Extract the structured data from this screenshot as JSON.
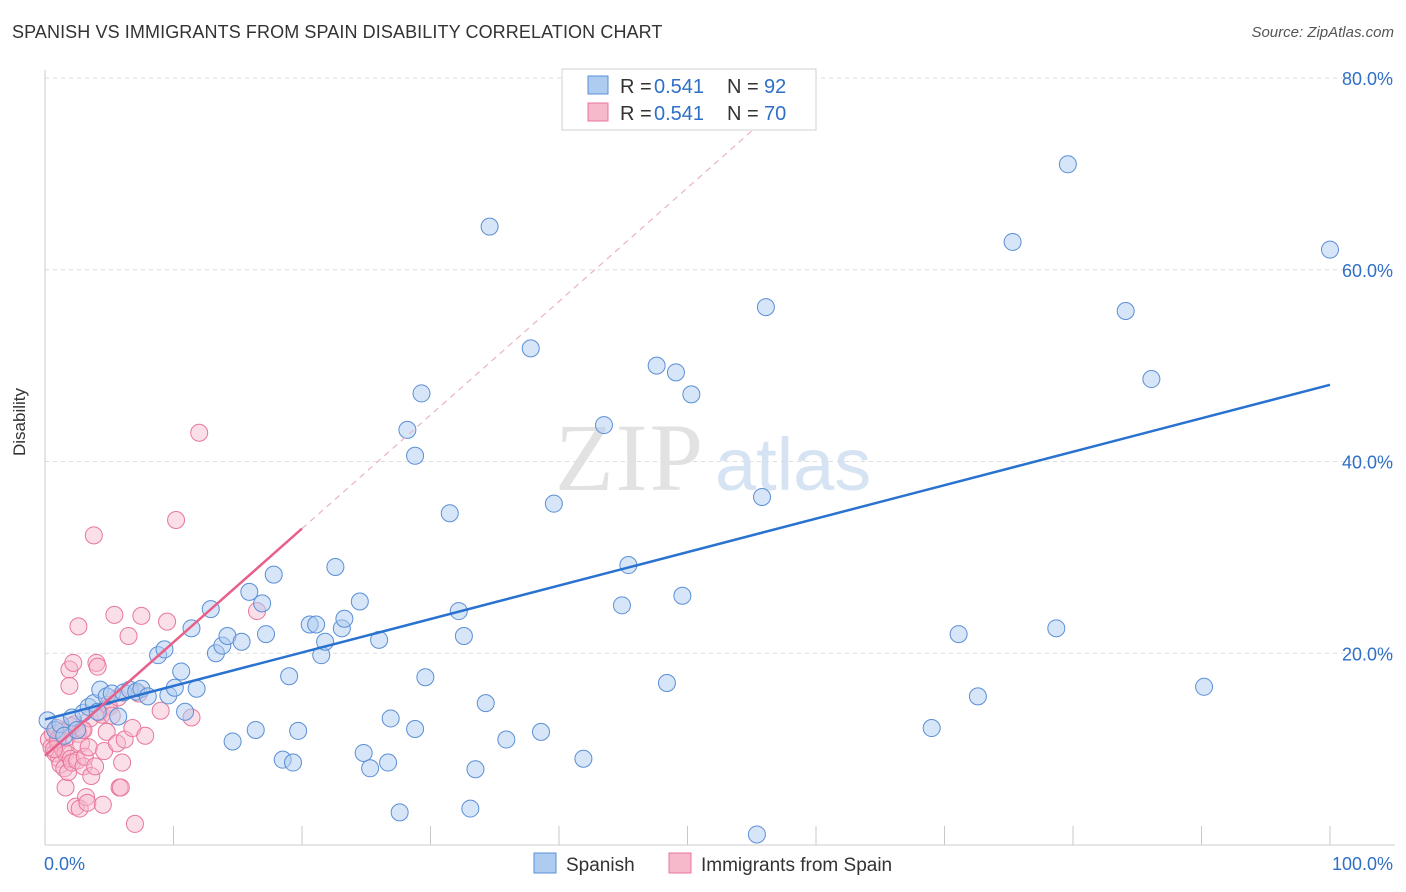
{
  "title": "SPANISH VS IMMIGRANTS FROM SPAIN DISABILITY CORRELATION CHART",
  "source": "Source: ZipAtlas.com",
  "watermark": {
    "zip": "ZIP",
    "atlas": "atlas"
  },
  "legend_top": [
    {
      "r_label": "R = ",
      "r_value": "0.541",
      "n_label": "N = ",
      "n_value": "92"
    },
    {
      "r_label": "R = ",
      "r_value": "0.541",
      "n_label": "N = ",
      "n_value": "70"
    }
  ],
  "colors": {
    "blue_fill": "#aecbf0",
    "blue_stroke": "#5b8fd6",
    "blue_line": "#2a72d0",
    "pink_fill": "#f6b8cb",
    "pink_stroke": "#e8779b",
    "pink_line": "#e8608a",
    "value_text": "#2f6fc6",
    "grid": "#dddddd"
  },
  "chart_data": {
    "type": "scatter",
    "title": "SPANISH VS IMMIGRANTS FROM SPAIN DISABILITY CORRELATION CHART",
    "xlabel": "",
    "ylabel": "Disability",
    "xlim": [
      0,
      100
    ],
    "ylim": [
      0,
      83
    ],
    "x_tick_labels": [
      "0.0%",
      "100.0%"
    ],
    "y_ticks": [
      20,
      40,
      60,
      80
    ],
    "y_tick_labels": [
      "20.0%",
      "40.0%",
      "60.0%",
      "80.0%"
    ],
    "grid": true,
    "legend_position": "bottom",
    "series": [
      {
        "name": "Spanish",
        "R": 0.541,
        "N": 92,
        "trend": {
          "x": [
            0,
            100
          ],
          "y": [
            13.1,
            48.0
          ]
        },
        "points": [
          [
            0.2,
            13.0
          ],
          [
            0.8,
            12.0
          ],
          [
            1.2,
            12.6
          ],
          [
            1.5,
            11.4
          ],
          [
            2.1,
            13.3
          ],
          [
            2.5,
            12.0
          ],
          [
            3.0,
            13.8
          ],
          [
            3.4,
            14.4
          ],
          [
            3.8,
            14.8
          ],
          [
            4.1,
            13.9
          ],
          [
            4.3,
            16.2
          ],
          [
            4.8,
            15.5
          ],
          [
            5.2,
            15.8
          ],
          [
            5.7,
            13.4
          ],
          [
            6.1,
            15.9
          ],
          [
            6.6,
            16.2
          ],
          [
            7.1,
            16.0
          ],
          [
            7.5,
            16.3
          ],
          [
            8.0,
            15.5
          ],
          [
            8.8,
            19.8
          ],
          [
            9.3,
            20.4
          ],
          [
            9.6,
            15.6
          ],
          [
            10.1,
            16.4
          ],
          [
            10.6,
            18.1
          ],
          [
            10.9,
            13.9
          ],
          [
            11.4,
            22.6
          ],
          [
            11.8,
            16.3
          ],
          [
            12.9,
            24.6
          ],
          [
            13.3,
            20.0
          ],
          [
            13.8,
            20.8
          ],
          [
            14.2,
            21.8
          ],
          [
            14.6,
            10.8
          ],
          [
            15.3,
            21.2
          ],
          [
            15.9,
            26.4
          ],
          [
            16.4,
            12.0
          ],
          [
            16.9,
            25.2
          ],
          [
            17.2,
            22.0
          ],
          [
            17.8,
            28.2
          ],
          [
            18.5,
            8.9
          ],
          [
            19.0,
            17.6
          ],
          [
            19.3,
            8.6
          ],
          [
            19.7,
            11.9
          ],
          [
            20.6,
            23.0
          ],
          [
            21.1,
            23.0
          ],
          [
            21.5,
            19.8
          ],
          [
            21.8,
            21.2
          ],
          [
            22.6,
            29.0
          ],
          [
            23.1,
            22.6
          ],
          [
            23.3,
            23.6
          ],
          [
            24.5,
            25.4
          ],
          [
            24.8,
            9.6
          ],
          [
            25.3,
            8.0
          ],
          [
            26.0,
            21.4
          ],
          [
            26.7,
            8.6
          ],
          [
            26.9,
            13.2
          ],
          [
            27.6,
            3.4
          ],
          [
            28.2,
            43.3
          ],
          [
            28.8,
            12.1
          ],
          [
            29.3,
            47.1
          ],
          [
            29.6,
            17.5
          ],
          [
            28.8,
            40.6
          ],
          [
            31.5,
            34.6
          ],
          [
            32.2,
            24.4
          ],
          [
            32.6,
            21.8
          ],
          [
            33.1,
            3.8
          ],
          [
            33.5,
            7.9
          ],
          [
            34.3,
            14.8
          ],
          [
            34.6,
            64.5
          ],
          [
            35.9,
            11.0
          ],
          [
            37.8,
            51.8
          ],
          [
            38.6,
            11.8
          ],
          [
            39.6,
            35.6
          ],
          [
            41.9,
            9.0
          ],
          [
            43.5,
            43.8
          ],
          [
            44.9,
            25.0
          ],
          [
            45.4,
            29.2
          ],
          [
            47.6,
            50.0
          ],
          [
            48.4,
            16.9
          ],
          [
            49.1,
            49.3
          ],
          [
            49.6,
            26.0
          ],
          [
            50.3,
            47.0
          ],
          [
            55.4,
            1.1
          ],
          [
            55.8,
            36.3
          ],
          [
            56.1,
            56.1
          ],
          [
            69.0,
            12.2
          ],
          [
            71.1,
            22.0
          ],
          [
            72.6,
            15.5
          ],
          [
            75.3,
            62.9
          ],
          [
            78.7,
            22.6
          ],
          [
            79.6,
            71.0
          ],
          [
            84.1,
            55.7
          ],
          [
            86.1,
            48.6
          ],
          [
            90.2,
            16.5
          ],
          [
            100.0,
            62.1
          ]
        ]
      },
      {
        "name": "Immigrants from Spain",
        "R": 0.541,
        "N": 70,
        "trend": {
          "x": [
            0,
            20
          ],
          "y": [
            9.3,
            33.0
          ]
        },
        "points": [
          [
            0.3,
            11.0
          ],
          [
            0.5,
            10.2
          ],
          [
            0.6,
            11.6
          ],
          [
            0.8,
            9.6
          ],
          [
            0.9,
            12.2
          ],
          [
            1.0,
            10.6
          ],
          [
            1.1,
            9.0
          ],
          [
            1.2,
            8.4
          ],
          [
            1.3,
            11.8
          ],
          [
            1.4,
            10.0
          ],
          [
            1.5,
            8.0
          ],
          [
            1.6,
            9.6
          ],
          [
            1.6,
            6.0
          ],
          [
            1.7,
            11.2
          ],
          [
            1.8,
            7.6
          ],
          [
            1.9,
            18.3
          ],
          [
            1.9,
            16.6
          ],
          [
            2.0,
            9.0
          ],
          [
            2.1,
            8.6
          ],
          [
            2.2,
            19.0
          ],
          [
            2.3,
            12.6
          ],
          [
            2.4,
            4.0
          ],
          [
            2.5,
            8.8
          ],
          [
            2.6,
            11.6
          ],
          [
            2.6,
            22.8
          ],
          [
            2.7,
            3.8
          ],
          [
            2.8,
            10.6
          ],
          [
            2.9,
            12.0
          ],
          [
            3.0,
            8.2
          ],
          [
            3.1,
            9.2
          ],
          [
            3.2,
            5.0
          ],
          [
            3.3,
            4.4
          ],
          [
            3.4,
            10.2
          ],
          [
            3.5,
            13.2
          ],
          [
            3.6,
            7.2
          ],
          [
            3.8,
            32.3
          ],
          [
            3.9,
            8.2
          ],
          [
            4.0,
            19.0
          ],
          [
            4.1,
            18.6
          ],
          [
            4.2,
            13.8
          ],
          [
            4.4,
            13.6
          ],
          [
            4.5,
            4.2
          ],
          [
            4.6,
            9.8
          ],
          [
            4.8,
            11.8
          ],
          [
            4.9,
            14.6
          ],
          [
            5.0,
            14.4
          ],
          [
            5.2,
            13.5
          ],
          [
            5.4,
            24.0
          ],
          [
            5.6,
            10.6
          ],
          [
            5.7,
            15.4
          ],
          [
            5.8,
            6.0
          ],
          [
            5.9,
            6.0
          ],
          [
            6.0,
            8.6
          ],
          [
            6.2,
            11.0
          ],
          [
            6.5,
            21.8
          ],
          [
            6.8,
            12.2
          ],
          [
            7.0,
            2.2
          ],
          [
            7.3,
            15.8
          ],
          [
            7.5,
            23.9
          ],
          [
            7.8,
            11.4
          ],
          [
            9.0,
            14.0
          ],
          [
            9.5,
            23.3
          ],
          [
            10.2,
            33.9
          ],
          [
            11.4,
            13.3
          ],
          [
            12.0,
            43.0
          ],
          [
            16.5,
            24.4
          ],
          [
            2.0,
            12.4
          ],
          [
            1.0,
            11.0
          ],
          [
            3.0,
            12.0
          ],
          [
            0.7,
            10.0
          ]
        ]
      }
    ]
  },
  "legend_bottom": [
    {
      "name": "Spanish"
    },
    {
      "name": "Immigrants from Spain"
    }
  ]
}
